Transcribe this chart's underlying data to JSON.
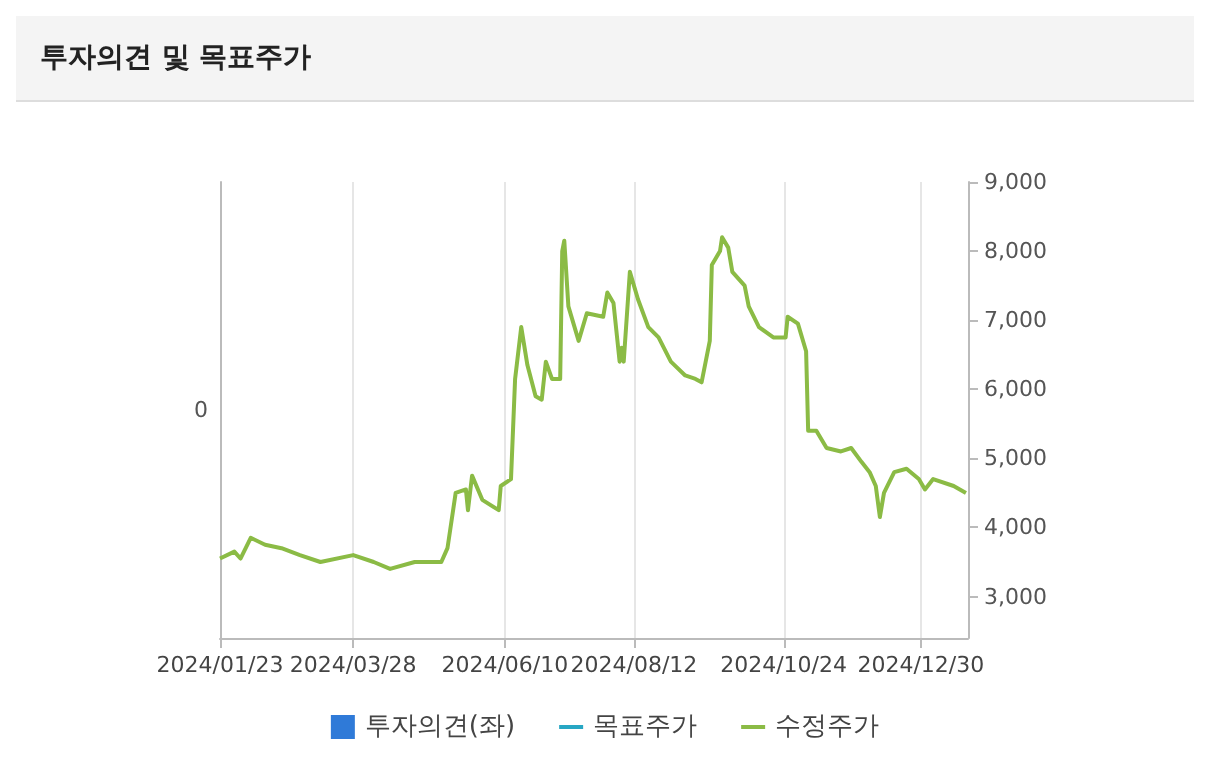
{
  "chart_data": {
    "type": "line",
    "title": "투자의견 및 목표주가",
    "xlim": [
      "2024-01-23",
      "2025-01-22"
    ],
    "xticks": [
      {
        "value": "2024-01-23",
        "label": "2024/01/23"
      },
      {
        "value": "2024-03-28",
        "label": "2024/03/28"
      },
      {
        "value": "2024-06-10",
        "label": "2024/06/10"
      },
      {
        "value": "2024-08-12",
        "label": "2024/08/12"
      },
      {
        "value": "2024-10-24",
        "label": "2024/10/24"
      },
      {
        "value": "2024-12-30",
        "label": "2024/12/30"
      }
    ],
    "annotations": [
      "0"
    ],
    "y2lim": [
      2400,
      9000
    ],
    "y2ticks": [
      {
        "value": 3000,
        "label": "3,000"
      },
      {
        "value": 4000,
        "label": "4,000"
      },
      {
        "value": 5000,
        "label": "5,000"
      },
      {
        "value": 6000,
        "label": "6,000"
      },
      {
        "value": 7000,
        "label": "7,000"
      },
      {
        "value": 8000,
        "label": "8,000"
      },
      {
        "value": 9000,
        "label": "9,000"
      }
    ],
    "grid": "x",
    "legend": "bottom",
    "marker": "none",
    "series": [
      {
        "name": "투자의견(좌)",
        "type": "bar",
        "color": "#2f7ad8"
      },
      {
        "name": "목표주가",
        "type": "line",
        "color": "#27a7c4",
        "axis": "y2"
      },
      {
        "name": "수정주가",
        "color": "#8bbb45",
        "axis": "y2",
        "x": [
          "2024-01-23",
          "2024-01-30",
          "2024-02-02",
          "2024-02-07",
          "2024-02-14",
          "2024-02-22",
          "2024-03-02",
          "2024-03-12",
          "2024-03-28",
          "2024-04-07",
          "2024-04-15",
          "2024-04-27",
          "2024-05-10",
          "2024-05-13",
          "2024-05-17",
          "2024-05-22",
          "2024-05-23",
          "2024-05-25",
          "2024-05-30",
          "2024-06-07",
          "2024-06-08",
          "2024-06-13",
          "2024-06-15",
          "2024-06-18",
          "2024-06-21",
          "2024-06-25",
          "2024-06-28",
          "2024-06-30",
          "2024-07-03",
          "2024-07-07",
          "2024-07-08",
          "2024-07-09",
          "2024-07-11",
          "2024-07-16",
          "2024-07-20",
          "2024-07-28",
          "2024-07-30",
          "2024-08-02",
          "2024-08-05",
          "2024-08-06",
          "2024-08-07",
          "2024-08-10",
          "2024-08-14",
          "2024-08-19",
          "2024-08-24",
          "2024-08-30",
          "2024-09-06",
          "2024-09-11",
          "2024-09-14",
          "2024-09-18",
          "2024-09-19",
          "2024-09-23",
          "2024-09-24",
          "2024-09-27",
          "2024-09-29",
          "2024-10-05",
          "2024-10-07",
          "2024-10-12",
          "2024-10-19",
          "2024-10-25",
          "2024-10-26",
          "2024-10-31",
          "2024-11-04",
          "2024-11-05",
          "2024-11-09",
          "2024-11-14",
          "2024-11-21",
          "2024-11-26",
          "2024-12-01",
          "2024-12-05",
          "2024-12-08",
          "2024-12-10",
          "2024-12-12",
          "2024-12-17",
          "2024-12-23",
          "2024-12-29",
          "2025-01-01",
          "2025-01-05",
          "2025-01-15",
          "2025-01-21"
        ],
        "values": [
          3550,
          3650,
          3550,
          3850,
          3750,
          3700,
          3600,
          3500,
          3600,
          3500,
          3400,
          3500,
          3500,
          3700,
          4500,
          4550,
          4250,
          4750,
          4400,
          4250,
          4600,
          4700,
          6150,
          6900,
          6350,
          5900,
          5850,
          6400,
          6150,
          6150,
          8000,
          8150,
          7200,
          6700,
          7100,
          7050,
          7400,
          7250,
          6400,
          6600,
          6400,
          7700,
          7300,
          6900,
          6750,
          6400,
          6200,
          6150,
          6100,
          6700,
          7800,
          8000,
          8200,
          8050,
          7700,
          7500,
          7200,
          6900,
          6750,
          6750,
          7050,
          6950,
          6550,
          5400,
          5400,
          5150,
          5100,
          5150,
          4950,
          4800,
          4600,
          4150,
          4500,
          4800,
          4850,
          4700,
          4550,
          4700,
          4600,
          4500
        ]
      }
    ]
  }
}
